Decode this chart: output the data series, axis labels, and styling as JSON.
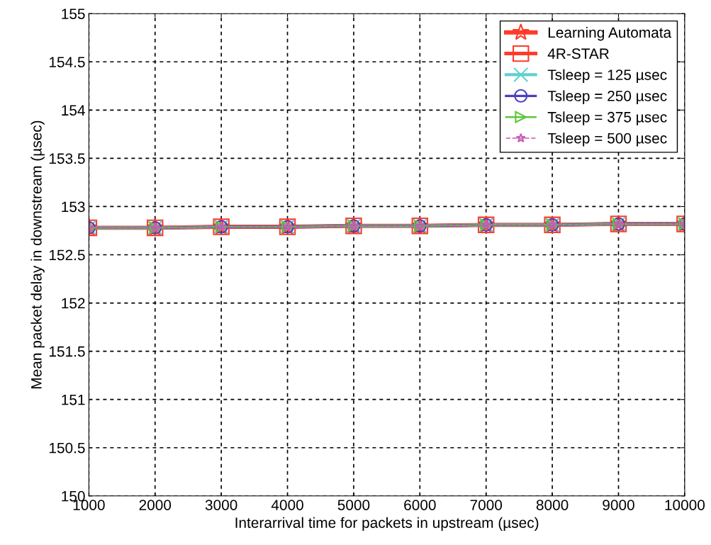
{
  "chart_data": {
    "type": "line",
    "xlabel": "Interarrival time for packets in upstream (µsec)",
    "ylabel": "Mean packet delay in downstream (µsec)",
    "x": [
      1000,
      2000,
      3000,
      4000,
      5000,
      6000,
      7000,
      8000,
      9000,
      10000
    ],
    "xlim": [
      1000,
      10000
    ],
    "xticks": [
      1000,
      2000,
      3000,
      4000,
      5000,
      6000,
      7000,
      8000,
      9000,
      10000
    ],
    "ylim": [
      150,
      155
    ],
    "yticks": [
      150,
      150.5,
      151,
      151.5,
      152,
      152.5,
      153,
      153.5,
      154,
      154.5,
      155
    ],
    "grid": true,
    "legend": "top right",
    "series": [
      {
        "name": "Learning Automata",
        "color": "#ff3b2a",
        "marker": "star",
        "line_style": "solid",
        "values": [
          152.78,
          152.78,
          152.79,
          152.79,
          152.8,
          152.8,
          152.81,
          152.81,
          152.82,
          152.82
        ]
      },
      {
        "name": "4R-STAR",
        "color": "#ff3b2a",
        "marker": "square",
        "line_style": "solid",
        "values": [
          152.78,
          152.78,
          152.79,
          152.79,
          152.8,
          152.8,
          152.81,
          152.81,
          152.82,
          152.82
        ]
      },
      {
        "name": "Tsleep = 125 µsec",
        "color": "#5fd0d0",
        "marker": "cross",
        "line_style": "solid",
        "values": [
          152.78,
          152.78,
          152.79,
          152.79,
          152.8,
          152.8,
          152.81,
          152.81,
          152.82,
          152.82
        ]
      },
      {
        "name": "Tsleep = 250 µsec",
        "color": "#4a3fbf",
        "marker": "circle",
        "line_style": "solid",
        "values": [
          152.78,
          152.78,
          152.79,
          152.79,
          152.8,
          152.8,
          152.81,
          152.81,
          152.82,
          152.82
        ]
      },
      {
        "name": "Tsleep = 375 µsec",
        "color": "#5cc83a",
        "marker": "triangle",
        "line_style": "solid",
        "values": [
          152.78,
          152.78,
          152.79,
          152.79,
          152.8,
          152.8,
          152.81,
          152.81,
          152.82,
          152.82
        ]
      },
      {
        "name": "Tsleep = 500 µsec",
        "color": "#c85ab8",
        "marker": "star",
        "line_style": "dashed",
        "values": [
          152.78,
          152.78,
          152.79,
          152.79,
          152.8,
          152.8,
          152.81,
          152.81,
          152.82,
          152.82
        ]
      }
    ]
  }
}
